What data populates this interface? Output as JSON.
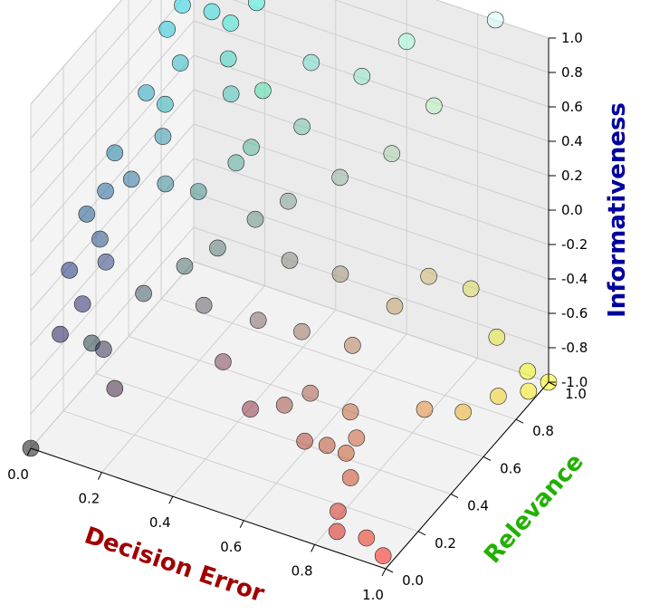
{
  "chart_data": {
    "type": "scatter",
    "projection": "3d",
    "xlabel": "Decision Error",
    "ylabel": "Relevance",
    "zlabel": "Informativeness",
    "xlim": [
      0,
      1
    ],
    "ylim": [
      0,
      1
    ],
    "zlim": [
      -1,
      1
    ],
    "x_ticks": [
      "0.0",
      "0.2",
      "0.4",
      "0.6",
      "0.8",
      "1.0"
    ],
    "y_ticks": [
      "0.0",
      "0.2",
      "0.4",
      "0.6",
      "0.8",
      "1.0"
    ],
    "z_ticks": [
      "-1.0",
      "-0.8",
      "-0.6",
      "-0.4",
      "-0.2",
      "0.0",
      "0.2",
      "0.4",
      "0.6",
      "0.8",
      "1.0"
    ],
    "grid": true,
    "point_color_encoding": "rgb = (Decision Error, Relevance, Informativeness scaled 0..1)",
    "axis_label_colors": {
      "x": "#a00000",
      "y": "#22b000",
      "z": "#00009e"
    },
    "points": [
      {
        "x": 0.0,
        "y": 0.0,
        "z": -1.0
      },
      {
        "x": 0.0,
        "y": 1.0,
        "z": 1.0
      },
      {
        "x": 1.0,
        "y": 1.0,
        "z": -1.0
      },
      {
        "x": 0.95,
        "y": 0.98,
        "z": -0.95
      },
      {
        "x": 0.05,
        "y": 0.95,
        "z": 0.95
      },
      {
        "x": 0.02,
        "y": 0.9,
        "z": 0.9
      },
      {
        "x": 0.08,
        "y": 0.92,
        "z": 0.85
      },
      {
        "x": 0.1,
        "y": 0.88,
        "z": 0.8
      },
      {
        "x": 0.06,
        "y": 0.8,
        "z": 0.75
      },
      {
        "x": 0.12,
        "y": 0.85,
        "z": 0.7
      },
      {
        "x": 0.04,
        "y": 0.75,
        "z": 0.65
      },
      {
        "x": 0.15,
        "y": 0.9,
        "z": 0.6
      },
      {
        "x": 0.1,
        "y": 0.7,
        "z": 0.55
      },
      {
        "x": 0.18,
        "y": 0.82,
        "z": 0.5
      },
      {
        "x": 0.05,
        "y": 0.6,
        "z": 0.45
      },
      {
        "x": 0.2,
        "y": 0.95,
        "z": 0.7
      },
      {
        "x": 0.22,
        "y": 0.75,
        "z": 0.4
      },
      {
        "x": 0.08,
        "y": 0.65,
        "z": 0.35
      },
      {
        "x": 0.25,
        "y": 0.88,
        "z": 0.3
      },
      {
        "x": 0.12,
        "y": 0.55,
        "z": 0.3
      },
      {
        "x": 0.03,
        "y": 0.45,
        "z": 0.25
      },
      {
        "x": 0.1,
        "y": 0.4,
        "z": 0.2
      },
      {
        "x": 0.05,
        "y": 0.35,
        "z": 0.15
      },
      {
        "x": 0.15,
        "y": 0.5,
        "z": 0.1
      },
      {
        "x": 0.02,
        "y": 0.3,
        "z": 0.05
      },
      {
        "x": 0.08,
        "y": 0.25,
        "z": 0.0
      },
      {
        "x": 0.12,
        "y": 0.2,
        "z": -0.05
      },
      {
        "x": 0.04,
        "y": 0.15,
        "z": -0.1
      },
      {
        "x": 0.1,
        "y": 0.1,
        "z": -0.2
      },
      {
        "x": 0.06,
        "y": 0.05,
        "z": -0.35
      },
      {
        "x": 0.15,
        "y": 0.12,
        "z": -0.45
      },
      {
        "x": 0.08,
        "y": 0.2,
        "z": -0.55
      },
      {
        "x": 0.2,
        "y": 0.08,
        "z": -0.6
      },
      {
        "x": 0.18,
        "y": 0.3,
        "z": -0.3
      },
      {
        "x": 0.25,
        "y": 0.4,
        "z": -0.2
      },
      {
        "x": 0.22,
        "y": 0.55,
        "z": 0.05
      },
      {
        "x": 0.28,
        "y": 0.65,
        "z": 0.15
      },
      {
        "x": 0.3,
        "y": 0.7,
        "z": 0.2
      },
      {
        "x": 0.32,
        "y": 0.45,
        "z": -0.1
      },
      {
        "x": 0.35,
        "y": 0.3,
        "z": -0.25
      },
      {
        "x": 0.38,
        "y": 0.55,
        "z": 0.0
      },
      {
        "x": 0.4,
        "y": 0.85,
        "z": 0.6
      },
      {
        "x": 0.42,
        "y": 0.75,
        "z": 0.35
      },
      {
        "x": 0.45,
        "y": 0.6,
        "z": 0.1
      },
      {
        "x": 0.45,
        "y": 0.2,
        "z": -0.4
      },
      {
        "x": 0.48,
        "y": 0.35,
        "z": -0.3
      },
      {
        "x": 0.5,
        "y": 0.5,
        "z": -0.1
      },
      {
        "x": 0.52,
        "y": 0.9,
        "z": 0.55
      },
      {
        "x": 0.55,
        "y": 0.15,
        "z": -0.55
      },
      {
        "x": 0.55,
        "y": 0.7,
        "z": 0.2
      },
      {
        "x": 0.58,
        "y": 0.4,
        "z": -0.35
      },
      {
        "x": 0.6,
        "y": 0.25,
        "z": -0.6
      },
      {
        "x": 0.62,
        "y": 0.55,
        "z": -0.15
      },
      {
        "x": 0.65,
        "y": 0.8,
        "z": 0.3
      },
      {
        "x": 0.65,
        "y": 0.3,
        "z": -0.55
      },
      {
        "x": 0.68,
        "y": 0.2,
        "z": -0.7
      },
      {
        "x": 0.7,
        "y": 0.45,
        "z": -0.4
      },
      {
        "x": 0.7,
        "y": 0.95,
        "z": 0.45
      },
      {
        "x": 0.72,
        "y": 0.25,
        "z": -0.75
      },
      {
        "x": 0.74,
        "y": 0.35,
        "z": -0.65
      },
      {
        "x": 0.75,
        "y": 0.6,
        "z": -0.3
      },
      {
        "x": 0.76,
        "y": 0.28,
        "z": -0.8
      },
      {
        "x": 0.78,
        "y": 0.3,
        "z": -0.72
      },
      {
        "x": 0.8,
        "y": 0.22,
        "z": -0.85
      },
      {
        "x": 0.8,
        "y": 0.7,
        "z": -0.2
      },
      {
        "x": 0.82,
        "y": 0.1,
        "z": -0.9
      },
      {
        "x": 0.84,
        "y": 0.05,
        "z": -0.95
      },
      {
        "x": 0.85,
        "y": 0.85,
        "z": -0.4
      },
      {
        "x": 0.88,
        "y": 0.5,
        "z": -0.7
      },
      {
        "x": 0.9,
        "y": 0.1,
        "z": -1.0
      },
      {
        "x": 0.9,
        "y": 0.9,
        "z": -0.7
      },
      {
        "x": 0.92,
        "y": 0.65,
        "z": -0.85
      },
      {
        "x": 0.95,
        "y": 0.8,
        "z": -0.9
      },
      {
        "x": 0.97,
        "y": 0.05,
        "z": -1.0
      },
      {
        "x": 0.98,
        "y": 0.92,
        "z": -0.98
      },
      {
        "x": 0.35,
        "y": 0.95,
        "z": 0.9
      },
      {
        "x": 0.15,
        "y": 1.0,
        "z": 0.95
      },
      {
        "x": 0.3,
        "y": 1.0,
        "z": 0.8
      },
      {
        "x": 0.6,
        "y": 1.0,
        "z": 0.7
      },
      {
        "x": 0.85,
        "y": 1.0,
        "z": 1.0
      }
    ]
  }
}
